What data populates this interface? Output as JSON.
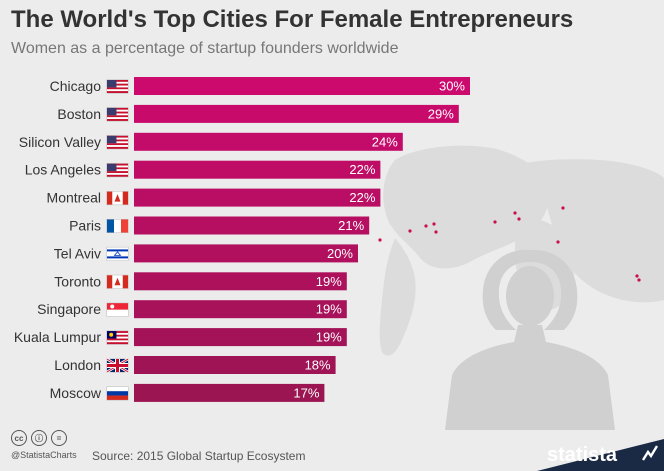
{
  "header": {
    "title": "The World's Top Cities For Female Entrepreneurs",
    "subtitle": "Women as a percentage of startup founders worldwide"
  },
  "chart_data": {
    "type": "bar",
    "orientation": "horizontal",
    "categories": [
      "Chicago",
      "Boston",
      "Silicon Valley",
      "Los Angeles",
      "Montreal",
      "Paris",
      "Tel Aviv",
      "Toronto",
      "Singapore",
      "Kuala Lumpur",
      "London",
      "Moscow"
    ],
    "values": [
      30,
      29,
      24,
      22,
      22,
      21,
      20,
      19,
      19,
      19,
      18,
      17
    ],
    "value_labels": [
      "30%",
      "29%",
      "24%",
      "22%",
      "22%",
      "21%",
      "20%",
      "19%",
      "19%",
      "19%",
      "18%",
      "17%"
    ],
    "flags": [
      "us-flag-icon",
      "us-flag-icon",
      "us-flag-icon",
      "us-flag-icon",
      "canada-flag-icon",
      "france-flag-icon",
      "israel-flag-icon",
      "canada-flag-icon",
      "singapore-flag-icon",
      "malaysia-flag-icon",
      "uk-flag-icon",
      "russia-flag-icon"
    ],
    "xlim": [
      0,
      30
    ],
    "bar_color_top": "#cc0a6e",
    "bar_color_bottom": "#9b1552",
    "grid": false,
    "legend": "none"
  },
  "footer": {
    "cc_icons": [
      "cc",
      "ⓘ",
      "="
    ],
    "handle": "@StatistaCharts",
    "source": "Source: 2015 Global Startup Ecosystem",
    "brand": "statista"
  },
  "colors": {
    "background": "#ececec",
    "map": "#dcdcdc",
    "map_dots": "#c8104f",
    "brand_bg": "#1a2a44"
  }
}
